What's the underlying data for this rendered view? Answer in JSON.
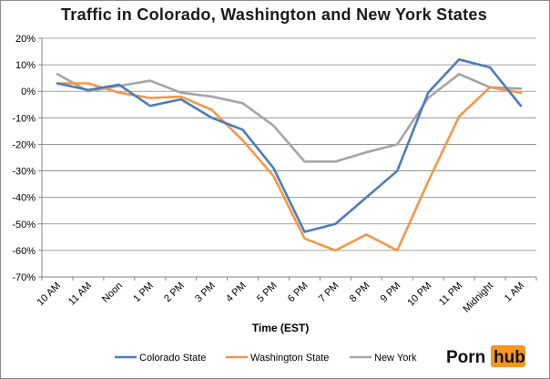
{
  "chart_data": {
    "type": "line",
    "title": "Traffic in Colorado, Washington and New York States",
    "xlabel": "Time (EST)",
    "ylabel": "",
    "categories": [
      "10 AM",
      "11 AM",
      "Noon",
      "1 PM",
      "2 PM",
      "3 PM",
      "4 PM",
      "5 PM",
      "6 PM",
      "7 PM",
      "8 PM",
      "9 PM",
      "10 PM",
      "11 PM",
      "Midnight",
      "1 AM"
    ],
    "ylim": [
      -70,
      20
    ],
    "ytick_values": [
      20,
      10,
      0,
      -10,
      -20,
      -30,
      -40,
      -50,
      -60,
      -70
    ],
    "ytick_labels": [
      "20%",
      "10%",
      "0%",
      "-10%",
      "-20%",
      "-30%",
      "-40%",
      "-50%",
      "-60%",
      "-70%"
    ],
    "grid": true,
    "legend_position": "bottom",
    "series": [
      {
        "name": "Colorado State",
        "color": "#4a7ebb",
        "values": [
          3,
          0.5,
          2.5,
          -5.5,
          -3,
          -10,
          -14.5,
          -29,
          -53,
          -50,
          -40,
          -30,
          -0.5,
          12,
          9,
          -5.5
        ]
      },
      {
        "name": "Washington State",
        "color": "#f79646",
        "values": [
          3,
          3,
          -0.5,
          -2.5,
          -2,
          -7,
          -18.5,
          -32,
          -55.5,
          -60,
          -54,
          -60,
          -34,
          -9.5,
          1.5,
          -0.5
        ]
      },
      {
        "name": "New York",
        "color": "#a5a5a5",
        "values": [
          6.5,
          0,
          2,
          4,
          -0.5,
          -2,
          -4.5,
          -13,
          -26.5,
          -26.5,
          -23,
          -20,
          -2.5,
          6.5,
          1.5,
          1
        ]
      }
    ]
  },
  "brand": {
    "logo_left": "Porn",
    "logo_right": "hub",
    "logo_badge_color": "#f7971d"
  }
}
